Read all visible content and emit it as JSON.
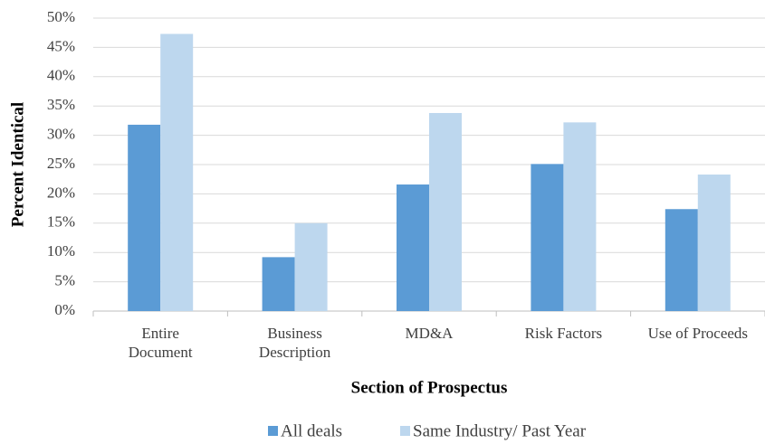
{
  "chart_data": {
    "type": "bar",
    "categories": [
      "Entire\nDocument",
      "Business\nDescription",
      "MD&A",
      "Risk Factors",
      "Use of Proceeds"
    ],
    "series": [
      {
        "name": "All deals",
        "color": "#5b9bd5",
        "values": [
          31.8,
          9.2,
          21.6,
          25.1,
          17.4
        ]
      },
      {
        "name": "Same Industry/ Past Year",
        "color": "#bdd7ee",
        "values": [
          47.3,
          15.0,
          33.8,
          32.2,
          23.3
        ]
      }
    ],
    "ylabel": "Percent Identical",
    "xlabel": "Section of Prospectus",
    "ylim": [
      0,
      50
    ],
    "yticks": [
      {
        "value": 0,
        "label": "0%"
      },
      {
        "value": 5,
        "label": "5%"
      },
      {
        "value": 10,
        "label": "10%"
      },
      {
        "value": 15,
        "label": "15%"
      },
      {
        "value": 20,
        "label": "20%"
      },
      {
        "value": 25,
        "label": "25%"
      },
      {
        "value": 30,
        "label": "30%"
      },
      {
        "value": 35,
        "label": "35%"
      },
      {
        "value": 40,
        "label": "40%"
      },
      {
        "value": 45,
        "label": "45%"
      },
      {
        "value": 50,
        "label": "50%"
      }
    ],
    "grid": true,
    "legend": "bottom"
  }
}
